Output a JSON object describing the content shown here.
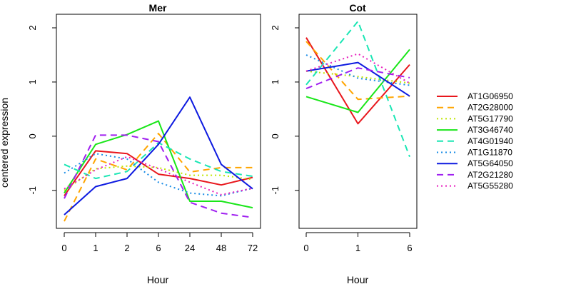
{
  "chart_data": {
    "type": "line",
    "ylabel": "centered expression",
    "ylim": [
      -1.7,
      2.25
    ],
    "yticks": [
      -1,
      0,
      1,
      2
    ],
    "legend_position": "right",
    "series": [
      {
        "name": "AT1G06950",
        "color": "#e8161c",
        "dash": "solid"
      },
      {
        "name": "AT2G28000",
        "color": "#ffa500",
        "dash": "dashed"
      },
      {
        "name": "AT5G17790",
        "color": "#bfe600",
        "dash": "dotted"
      },
      {
        "name": "AT3G46740",
        "color": "#19e619",
        "dash": "solid"
      },
      {
        "name": "AT4G01940",
        "color": "#1ae6b4",
        "dash": "dashed"
      },
      {
        "name": "AT1G11870",
        "color": "#1a8ce6",
        "dash": "dotted"
      },
      {
        "name": "AT5G64050",
        "color": "#0d1ae0",
        "dash": "solid"
      },
      {
        "name": "AT2G21280",
        "color": "#a020f0",
        "dash": "dashed"
      },
      {
        "name": "AT5G55280",
        "color": "#e81ebe",
        "dash": "dotted"
      }
    ],
    "panels": [
      {
        "title": "Mer",
        "xlabel": "Hour",
        "categories": [
          "0",
          "1",
          "2",
          "6",
          "24",
          "48",
          "72"
        ],
        "values": {
          "AT1G06950": [
            -1.1,
            -0.27,
            -0.32,
            -0.7,
            -0.78,
            -0.9,
            -0.76
          ],
          "AT2G28000": [
            -1.57,
            -0.42,
            -0.62,
            0.05,
            -0.66,
            -0.58,
            -0.58
          ],
          "AT5G17790": [
            -1.0,
            -0.6,
            -0.55,
            -0.58,
            -0.72,
            -0.72,
            -0.8
          ],
          "AT3G46740": [
            -1.05,
            -0.15,
            0.03,
            0.28,
            -1.2,
            -1.2,
            -1.32
          ],
          "AT4G01940": [
            -0.52,
            -0.78,
            -0.65,
            -0.12,
            -0.42,
            -0.65,
            -0.74
          ],
          "AT1G11870": [
            -0.68,
            -0.32,
            -0.42,
            -0.85,
            -1.05,
            -1.1,
            -0.96
          ],
          "AT5G64050": [
            -1.45,
            -0.93,
            -0.78,
            -0.15,
            0.72,
            -0.52,
            -0.97
          ],
          "AT2G21280": [
            -1.15,
            0.02,
            0.02,
            -0.1,
            -1.22,
            -1.42,
            -1.5
          ],
          "AT5G55280": [
            -0.97,
            -0.62,
            -0.38,
            -0.6,
            -0.85,
            -1.08,
            -0.96
          ]
        }
      },
      {
        "title": "Cot",
        "xlabel": "Hour",
        "categories": [
          "0",
          "1",
          "6"
        ],
        "values": {
          "AT1G06950": [
            1.82,
            0.23,
            1.32
          ],
          "AT2G28000": [
            1.75,
            0.68,
            0.74
          ],
          "AT5G17790": [
            1.2,
            1.1,
            0.98
          ],
          "AT3G46740": [
            0.73,
            0.44,
            1.6
          ],
          "AT4G01940": [
            0.95,
            2.12,
            -0.38
          ],
          "AT1G11870": [
            1.5,
            1.07,
            0.94
          ],
          "AT5G64050": [
            1.2,
            1.36,
            0.74
          ],
          "AT2G21280": [
            0.88,
            1.26,
            1.08
          ],
          "AT5G55280": [
            1.2,
            1.52,
            0.98
          ]
        }
      }
    ]
  }
}
